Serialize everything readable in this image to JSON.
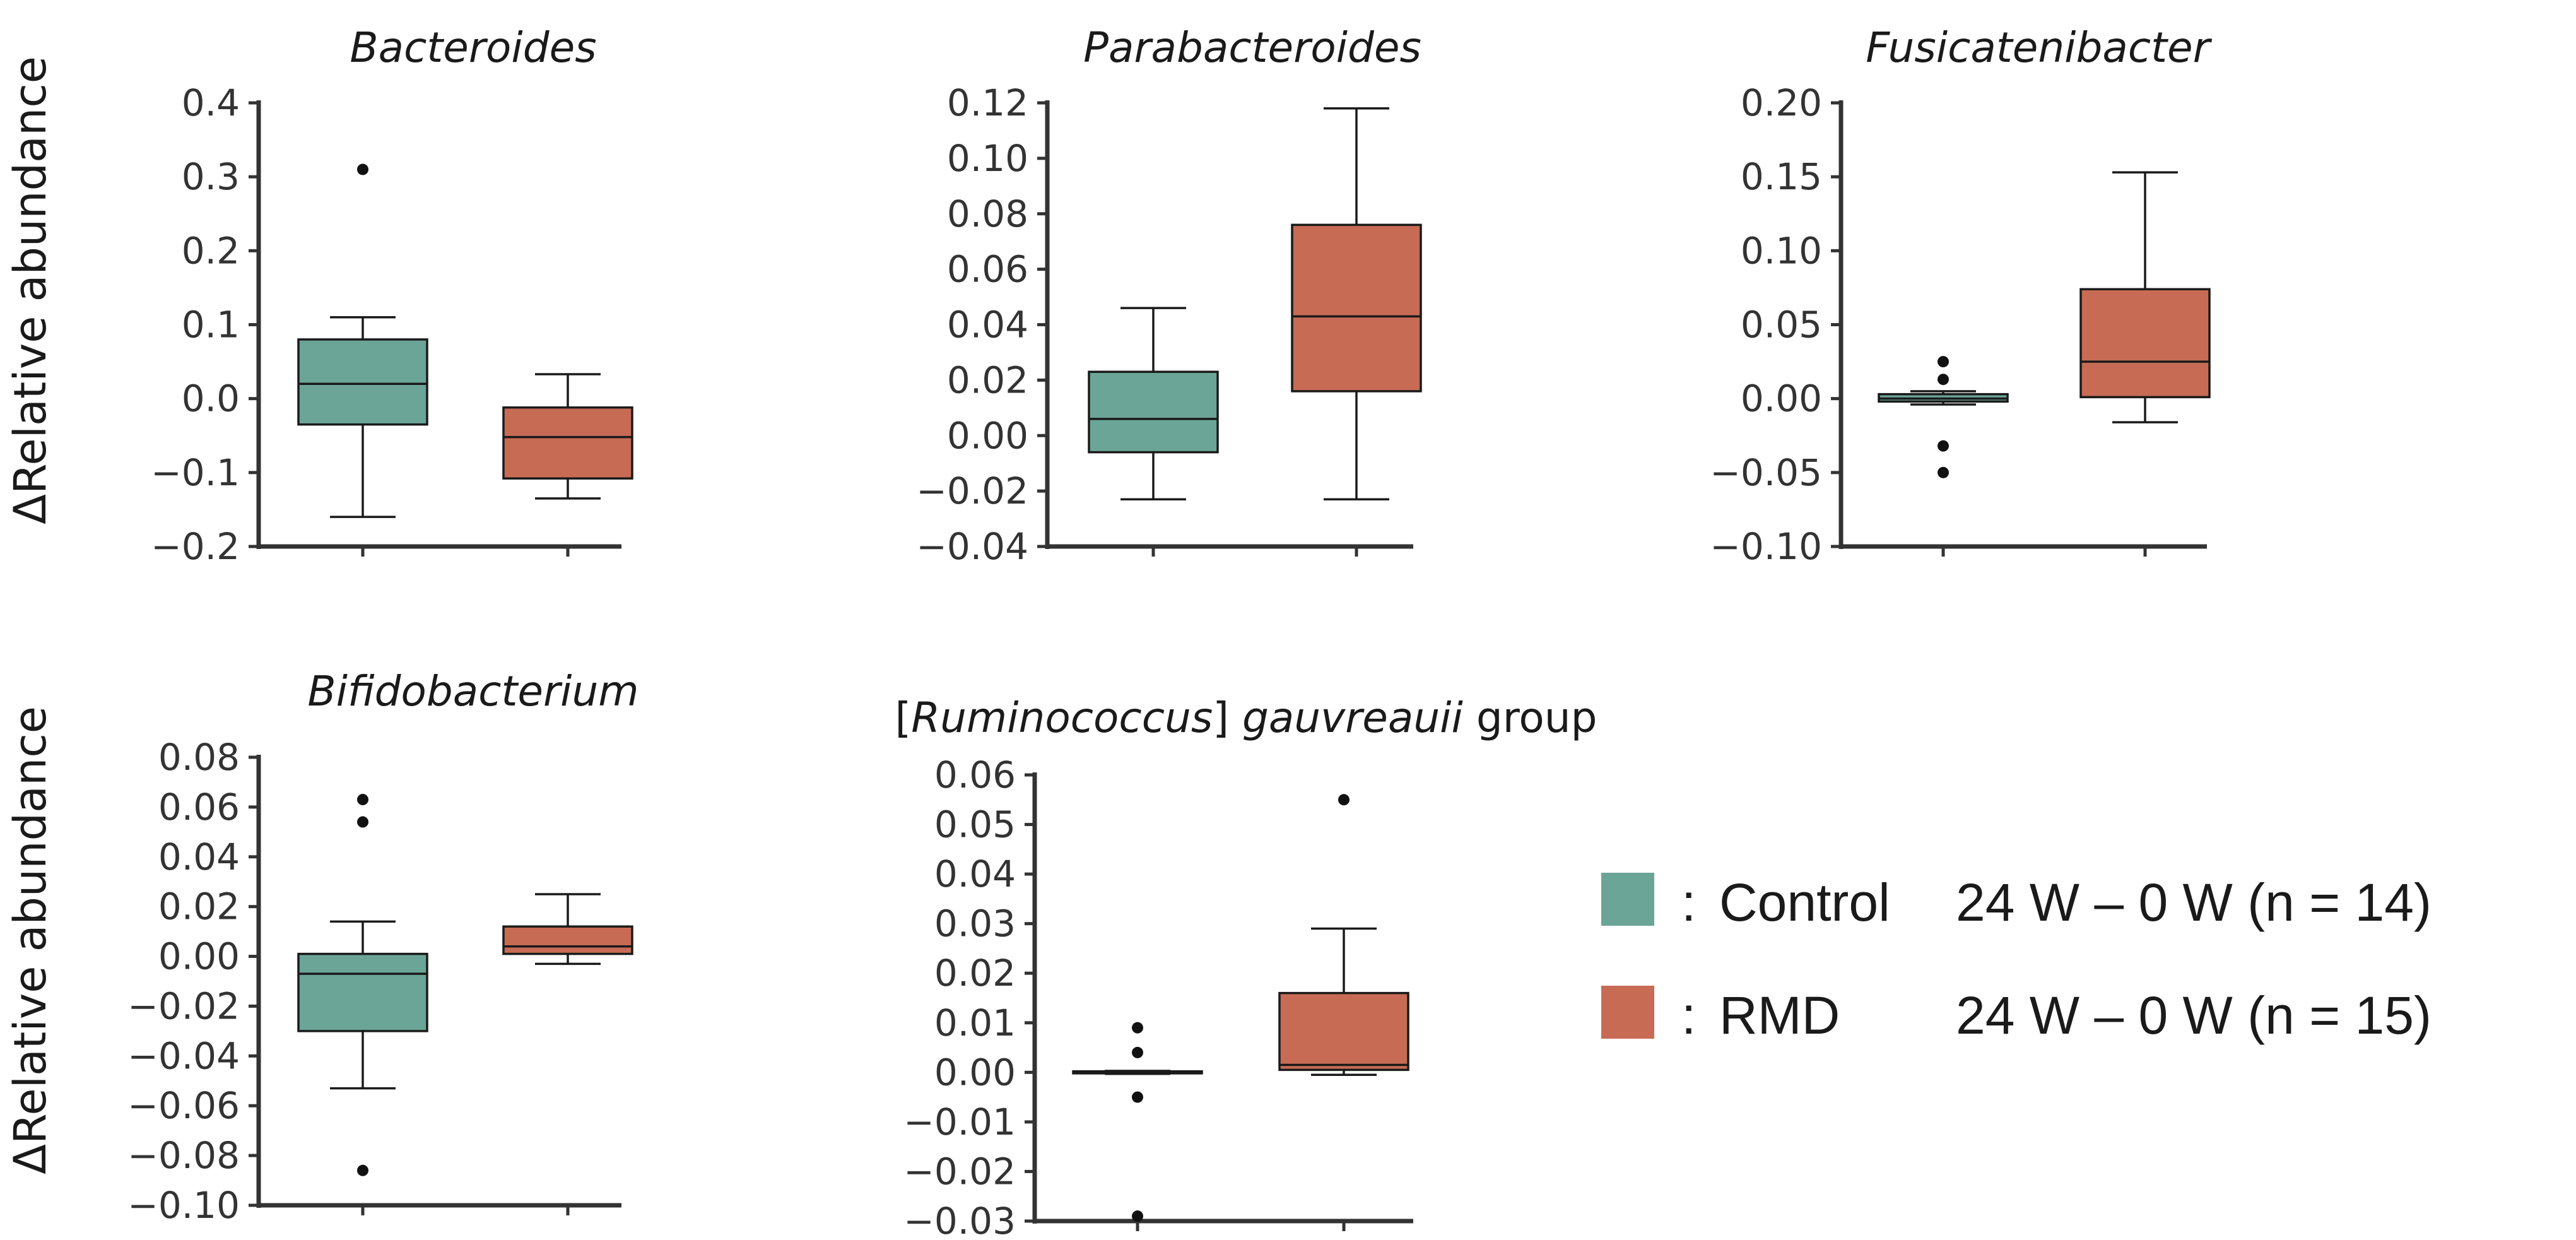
{
  "colors": {
    "control": "#6ba597",
    "rmd": "#c76b54",
    "axis": "#333333",
    "edge": "#1a1a1a"
  },
  "ylabel": "ΔRelative abundance",
  "legend": {
    "items": [
      {
        "color_key": "control",
        "separator": ":",
        "group": "Control",
        "label": "24 W – 0 W (n = 14)"
      },
      {
        "color_key": "rmd",
        "separator": ":",
        "group": "RMD",
        "label": "24 W – 0 W (n = 15)"
      }
    ]
  },
  "chart_data": [
    {
      "type": "box",
      "title": "Bacteroides",
      "title_style": "italic",
      "ylabel": "ΔRelative abundance",
      "ylim": [
        -0.2,
        0.4
      ],
      "ticks": [
        -0.2,
        -0.1,
        0.0,
        0.1,
        0.2,
        0.3,
        0.4
      ],
      "tick_labels": [
        "−0.2",
        "−0.1",
        "0.0",
        "0.1",
        "0.2",
        "0.3",
        "0.4"
      ],
      "boxes": [
        {
          "group": "Control",
          "whisker_low": -0.16,
          "q1": -0.035,
          "median": 0.02,
          "q3": 0.08,
          "whisker_high": 0.11,
          "outliers": [
            0.31
          ]
        },
        {
          "group": "RMD",
          "whisker_low": -0.135,
          "q1": -0.108,
          "median": -0.052,
          "q3": -0.012,
          "whisker_high": 0.033,
          "outliers": []
        }
      ]
    },
    {
      "type": "box",
      "title": "Parabacteroides",
      "title_style": "italic",
      "ylabel": "",
      "ylim": [
        -0.04,
        0.12
      ],
      "ticks": [
        -0.04,
        -0.02,
        0.0,
        0.02,
        0.04,
        0.06,
        0.08,
        0.1,
        0.12
      ],
      "tick_labels": [
        "−0.04",
        "−0.02",
        "0.00",
        "0.02",
        "0.04",
        "0.06",
        "0.08",
        "0.10",
        "0.12"
      ],
      "boxes": [
        {
          "group": "Control",
          "whisker_low": -0.023,
          "q1": -0.006,
          "median": 0.006,
          "q3": 0.023,
          "whisker_high": 0.046,
          "outliers": []
        },
        {
          "group": "RMD",
          "whisker_low": -0.023,
          "q1": 0.016,
          "median": 0.043,
          "q3": 0.076,
          "whisker_high": 0.118,
          "outliers": []
        }
      ]
    },
    {
      "type": "box",
      "title": "Fusicatenibacter",
      "title_style": "italic",
      "ylabel": "",
      "ylim": [
        -0.1,
        0.2
      ],
      "ticks": [
        -0.1,
        -0.05,
        0.0,
        0.05,
        0.1,
        0.15,
        0.2
      ],
      "tick_labels": [
        "−0.10",
        "−0.05",
        "0.00",
        "0.05",
        "0.10",
        "0.15",
        "0.20"
      ],
      "boxes": [
        {
          "group": "Control",
          "whisker_low": -0.004,
          "q1": -0.002,
          "median": 0.0,
          "q3": 0.003,
          "whisker_high": 0.005,
          "outliers": [
            0.025,
            0.013,
            -0.032,
            -0.05
          ]
        },
        {
          "group": "RMD",
          "whisker_low": -0.016,
          "q1": 0.001,
          "median": 0.025,
          "q3": 0.074,
          "whisker_high": 0.153,
          "outliers": []
        }
      ]
    },
    {
      "type": "box",
      "title": "Bifidobacterium",
      "title_style": "italic",
      "ylabel": "ΔRelative abundance",
      "ylim": [
        -0.1,
        0.08
      ],
      "ticks": [
        -0.1,
        -0.08,
        -0.06,
        -0.04,
        -0.02,
        0.0,
        0.02,
        0.04,
        0.06,
        0.08
      ],
      "tick_labels": [
        "−0.10",
        "−0.08",
        "−0.06",
        "−0.04",
        "−0.02",
        "0.00",
        "0.02",
        "0.04",
        "0.06",
        "0.08"
      ],
      "boxes": [
        {
          "group": "Control",
          "whisker_low": -0.053,
          "q1": -0.03,
          "median": -0.007,
          "q3": 0.001,
          "whisker_high": 0.014,
          "outliers": [
            0.063,
            0.054,
            -0.086
          ]
        },
        {
          "group": "RMD",
          "whisker_low": -0.003,
          "q1": 0.001,
          "median": 0.004,
          "q3": 0.012,
          "whisker_high": 0.025,
          "outliers": []
        }
      ]
    },
    {
      "type": "box",
      "title": "[Ruminococcus] gauvreauii group",
      "title_parts": [
        {
          "text": "[",
          "italic": false
        },
        {
          "text": "Ruminococcus",
          "italic": true
        },
        {
          "text": "] ",
          "italic": false
        },
        {
          "text": "gauvreauii",
          "italic": true
        },
        {
          "text": " group",
          "italic": false
        }
      ],
      "ylabel": "",
      "ylim": [
        -0.03,
        0.06
      ],
      "ticks": [
        -0.03,
        -0.02,
        -0.01,
        0.0,
        0.01,
        0.02,
        0.03,
        0.04,
        0.05,
        0.06
      ],
      "tick_labels": [
        "−0.03",
        "−0.02",
        "−0.01",
        "0.00",
        "0.01",
        "0.02",
        "0.03",
        "0.04",
        "0.05",
        "0.06"
      ],
      "boxes": [
        {
          "group": "Control",
          "whisker_low": -0.0003,
          "q1": -0.0002,
          "median": 0.0,
          "q3": 0.0002,
          "whisker_high": 0.0003,
          "outliers": [
            0.009,
            0.004,
            -0.005,
            -0.029
          ]
        },
        {
          "group": "RMD",
          "whisker_low": -0.0005,
          "q1": 0.0005,
          "median": 0.0015,
          "q3": 0.016,
          "whisker_high": 0.029,
          "outliers": [
            0.055
          ]
        }
      ]
    }
  ]
}
